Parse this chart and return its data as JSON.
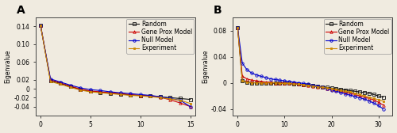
{
  "panel_A": {
    "label": "A",
    "xlim": [
      -0.5,
      15.5
    ],
    "ylim": [
      -0.06,
      0.16
    ],
    "xticks": [
      0,
      5,
      10,
      15
    ],
    "yticks": [
      -0.04,
      -0.02,
      0.0,
      0.02,
      0.06,
      0.1,
      0.14
    ],
    "ytick_labels": [
      "-0.04",
      "-0.02",
      "0",
      "0.02",
      "0.06",
      "0.10",
      "0.14"
    ],
    "ylabel": "Eigenvalue",
    "series": {
      "Random": {
        "color": "#111111",
        "marker": "s",
        "markersize": 2.5,
        "lw": 0.8
      },
      "Gene Prox Model": {
        "color": "#cc0000",
        "marker": "^",
        "markersize": 2.5,
        "lw": 0.8
      },
      "Null Model": {
        "color": "#0000cc",
        "marker": "o",
        "markersize": 2.5,
        "lw": 0.8
      },
      "Experiment": {
        "color": "#cc8800",
        "marker": "s",
        "markersize": 2.0,
        "lw": 0.8
      }
    },
    "data": {
      "Random": [
        0.143,
        0.018,
        0.012,
        0.005,
        -0.002,
        -0.006,
        -0.008,
        -0.01,
        -0.012,
        -0.014,
        -0.015,
        -0.016,
        -0.018,
        -0.02,
        -0.022,
        -0.024
      ],
      "Gene Prox Model": [
        0.143,
        0.02,
        0.013,
        0.006,
        -0.001,
        -0.005,
        -0.007,
        -0.009,
        -0.011,
        -0.013,
        -0.015,
        -0.016,
        -0.019,
        -0.025,
        -0.032,
        -0.04
      ],
      "Null Model": [
        0.143,
        0.022,
        0.015,
        0.008,
        0.002,
        -0.002,
        -0.004,
        -0.007,
        -0.009,
        -0.011,
        -0.013,
        -0.015,
        -0.018,
        -0.022,
        -0.026,
        -0.04
      ],
      "Experiment": [
        0.143,
        0.016,
        0.01,
        0.003,
        -0.003,
        -0.007,
        -0.009,
        -0.011,
        -0.013,
        -0.015,
        -0.016,
        -0.018,
        -0.02,
        -0.023,
        -0.026,
        -0.033
      ]
    }
  },
  "panel_B": {
    "label": "B",
    "xlim": [
      -1,
      33
    ],
    "ylim": [
      -0.05,
      0.1
    ],
    "xticks": [
      0,
      10,
      20,
      30
    ],
    "yticks": [
      -0.04,
      0.0,
      0.04,
      0.08
    ],
    "ytick_labels": [
      "-0.04",
      "0",
      "0.04",
      "0.08"
    ],
    "ylabel": "Eigenvalue",
    "series": {
      "Random": {
        "color": "#111111",
        "marker": "s",
        "markersize": 2.5,
        "lw": 0.8
      },
      "Gene Prox Model": {
        "color": "#cc0000",
        "marker": "^",
        "markersize": 2.5,
        "lw": 0.8
      },
      "Null Model": {
        "color": "#0000cc",
        "marker": "o",
        "markersize": 2.5,
        "lw": 0.8
      },
      "Experiment": {
        "color": "#cc8800",
        "marker": "s",
        "markersize": 2.0,
        "lw": 0.8
      }
    },
    "data": {
      "Random": [
        0.085,
        0.003,
        0.001,
        0.0,
        0.0,
        0.0,
        0.0,
        0.0,
        -0.001,
        -0.001,
        -0.001,
        -0.001,
        -0.002,
        -0.002,
        -0.003,
        -0.003,
        -0.004,
        -0.005,
        -0.006,
        -0.007,
        -0.008,
        -0.009,
        -0.01,
        -0.011,
        -0.012,
        -0.013,
        -0.014,
        -0.015,
        -0.016,
        -0.018,
        -0.02,
        -0.022
      ],
      "Gene Prox Model": [
        0.085,
        0.01,
        0.006,
        0.004,
        0.003,
        0.002,
        0.001,
        0.001,
        0.0,
        0.0,
        0.0,
        -0.001,
        -0.001,
        -0.002,
        -0.003,
        -0.004,
        -0.005,
        -0.006,
        -0.007,
        -0.009,
        -0.01,
        -0.012,
        -0.013,
        -0.015,
        -0.016,
        -0.018,
        -0.02,
        -0.022,
        -0.024,
        -0.026,
        -0.03,
        -0.034
      ],
      "Null Model": [
        0.085,
        0.03,
        0.02,
        0.015,
        0.012,
        0.01,
        0.008,
        0.006,
        0.005,
        0.004,
        0.003,
        0.002,
        0.001,
        0.0,
        -0.001,
        -0.002,
        -0.004,
        -0.005,
        -0.007,
        -0.009,
        -0.011,
        -0.013,
        -0.015,
        -0.017,
        -0.019,
        -0.021,
        -0.023,
        -0.025,
        -0.028,
        -0.031,
        -0.035,
        -0.04
      ],
      "Experiment": [
        0.085,
        0.003,
        0.001,
        0.0,
        0.0,
        0.0,
        0.0,
        0.0,
        0.0,
        -0.001,
        -0.001,
        -0.001,
        -0.002,
        -0.002,
        -0.003,
        -0.004,
        -0.005,
        -0.006,
        -0.007,
        -0.008,
        -0.009,
        -0.01,
        -0.012,
        -0.013,
        -0.014,
        -0.016,
        -0.018,
        -0.02,
        -0.022,
        -0.024,
        -0.026,
        -0.028
      ]
    }
  },
  "legend_order": [
    "Random",
    "Gene Prox Model",
    "Null Model",
    "Experiment"
  ],
  "bg_color": "#f0ebe0",
  "font_size": 5.5,
  "label_font_size": 10
}
